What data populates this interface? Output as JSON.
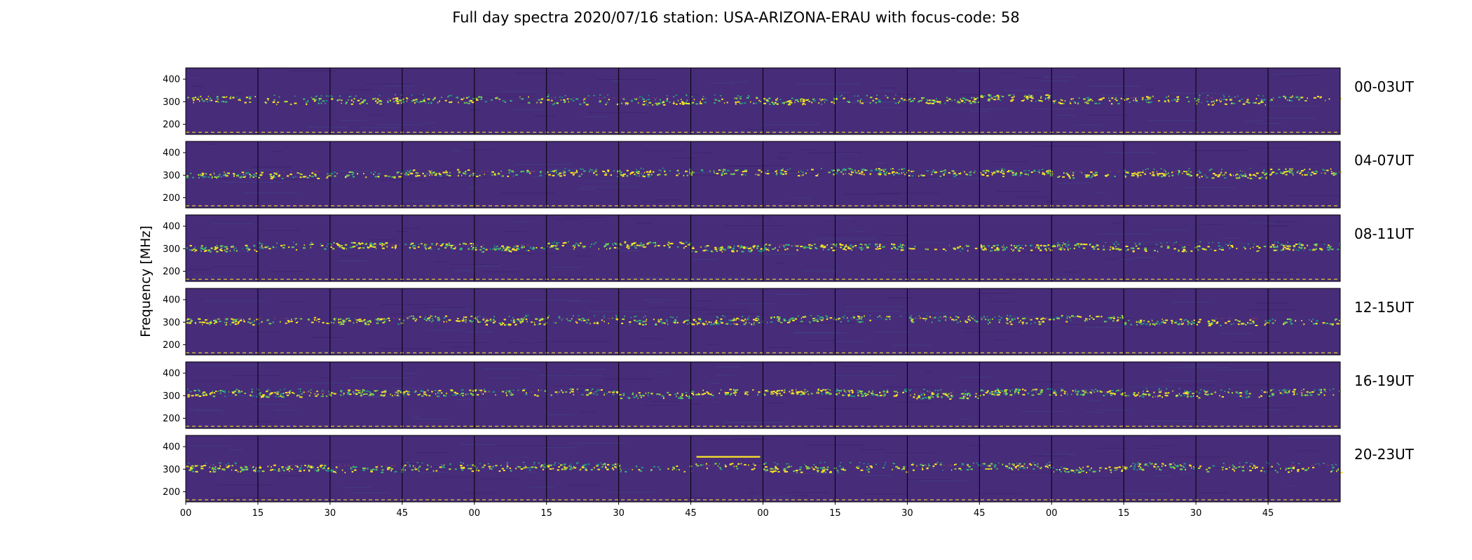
{
  "chart_data": {
    "type": "heatmap",
    "title": "Full day spectra 2020/07/16 station: USA-ARIZONA-ERAU with focus-code: 58",
    "ylabel": "Frequency [MHz]",
    "xlabel": "",
    "ylim": [
      155,
      450
    ],
    "yticks": [
      "400",
      "300",
      "200"
    ],
    "ytick_values": [
      400,
      300,
      200
    ],
    "xticks": [
      "00",
      "15",
      "30",
      "45",
      "00",
      "15",
      "30",
      "45",
      "00",
      "15",
      "30",
      "45",
      "00",
      "15",
      "30",
      "45"
    ],
    "segments_per_row": 16,
    "segment_minutes": 15,
    "signal_band_mhz": 310,
    "colormap": "viridis",
    "background_color": "#472c7a",
    "rows": [
      {
        "label": "00-03UT"
      },
      {
        "label": "04-07UT"
      },
      {
        "label": "08-11UT"
      },
      {
        "label": "12-15UT"
      },
      {
        "label": "16-19UT"
      },
      {
        "label": "20-23UT"
      }
    ],
    "annotations": [
      {
        "row": 5,
        "segment": 7,
        "type": "horizontal-line",
        "frequency_mhz": 355,
        "color": "#fde725"
      }
    ]
  }
}
